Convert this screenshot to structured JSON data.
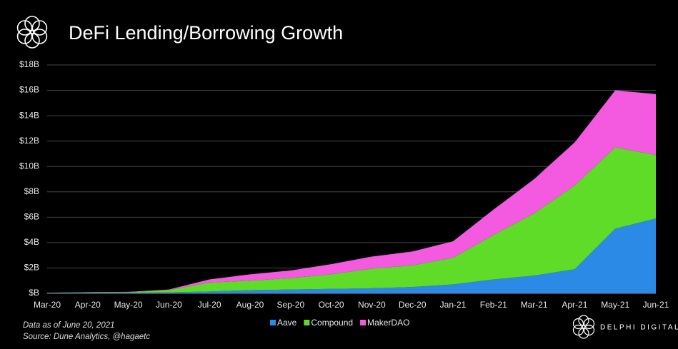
{
  "chart_data": {
    "type": "stacked-area",
    "title": "DeFi Lending/Borrowing Growth",
    "notes": [
      "Data as of June 20, 2021",
      "Source: Dune Analytics, @hagaetc"
    ],
    "brand": "DELPHI DIGITAL",
    "categories": [
      "Mar-20",
      "Apr-20",
      "May-20",
      "Jun-20",
      "Jul-20",
      "Aug-20",
      "Sep-20",
      "Oct-20",
      "Nov-20",
      "Dec-20",
      "Jan-21",
      "Feb-21",
      "Mar-21",
      "Apr-21",
      "May-21",
      "Jun-21"
    ],
    "series": [
      {
        "name": "Aave",
        "color": "#2b8ae6",
        "values": [
          0.02,
          0.05,
          0.05,
          0.08,
          0.15,
          0.25,
          0.3,
          0.35,
          0.4,
          0.5,
          0.7,
          1.1,
          1.4,
          1.9,
          5.1,
          5.9
        ]
      },
      {
        "name": "Compound",
        "color": "#5fdc28",
        "values": [
          0.02,
          0.03,
          0.05,
          0.17,
          0.7,
          0.75,
          0.9,
          1.15,
          1.55,
          1.7,
          2.1,
          3.5,
          4.9,
          6.6,
          6.4,
          5.0
        ]
      },
      {
        "name": "MakerDAO",
        "color": "#f35ae0",
        "values": [
          0.01,
          0.02,
          0.02,
          0.05,
          0.25,
          0.5,
          0.6,
          0.8,
          0.95,
          1.1,
          1.3,
          2.0,
          2.7,
          3.4,
          4.5,
          4.8
        ]
      }
    ],
    "ylim": [
      0,
      18
    ],
    "yticks": [
      {
        "value": 0,
        "label": "$B"
      },
      {
        "value": 2,
        "label": "$2B"
      },
      {
        "value": 4,
        "label": "$4B"
      },
      {
        "value": 6,
        "label": "$6B"
      },
      {
        "value": 8,
        "label": "$8B"
      },
      {
        "value": 10,
        "label": "$10B"
      },
      {
        "value": 12,
        "label": "$12B"
      },
      {
        "value": 14,
        "label": "$14B"
      },
      {
        "value": 16,
        "label": "$16B"
      },
      {
        "value": 18,
        "label": "$18B"
      }
    ],
    "grid": true
  }
}
